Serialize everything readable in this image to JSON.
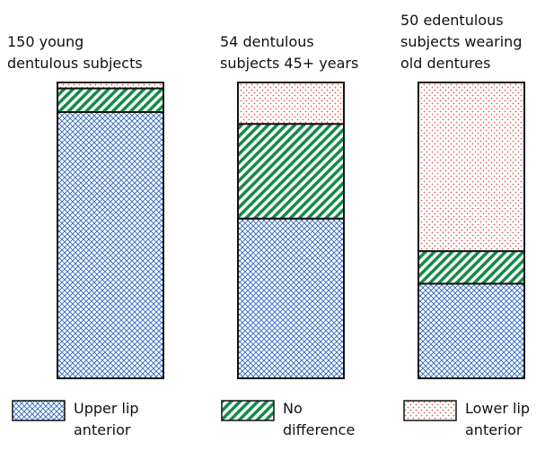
{
  "chart_data": {
    "type": "stacked_bar",
    "categories": [
      "150 young\ndentulous subjects",
      "54 dentulous\nsubjects 45+ years",
      "50 edentulous\nsubjects wearing\nold dentures"
    ],
    "series": [
      {
        "name": "Upper lip\nanterior",
        "color": "#2f66c0",
        "values": [
          90,
          54,
          32
        ]
      },
      {
        "name": "No\ndifference",
        "color": "#138a48",
        "values": [
          8,
          32,
          11
        ]
      },
      {
        "name": "Lower lip\nanterior",
        "color": "#e03c3c",
        "values": [
          2,
          14,
          57
        ]
      }
    ]
  }
}
